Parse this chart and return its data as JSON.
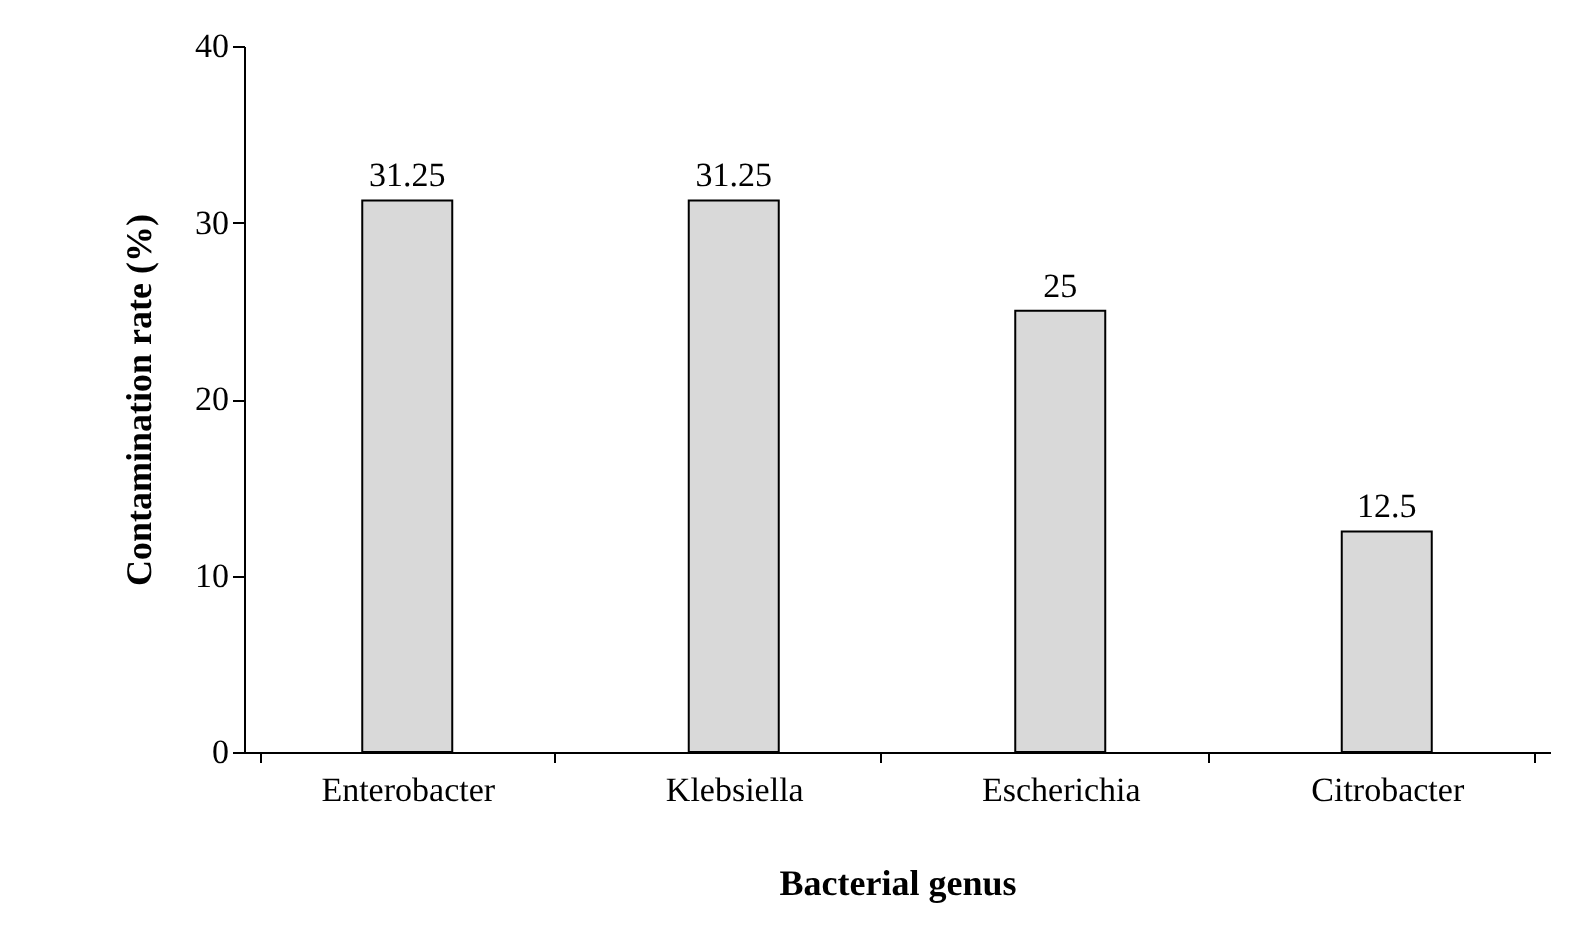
{
  "chart_data": {
    "type": "bar",
    "categories": [
      "Enterobacter",
      "Klebsiella",
      "Escherichia",
      "Citrobacter"
    ],
    "values": [
      31.25,
      31.25,
      25,
      12.5
    ],
    "color": "#d9d9d9",
    "xlabel": "Bacterial genus",
    "ylabel": "Contamination rate (%)",
    "ylim": [
      0,
      40
    ],
    "yticks": [
      0,
      10,
      20,
      30,
      40
    ],
    "data_labels": true,
    "grid": false
  }
}
